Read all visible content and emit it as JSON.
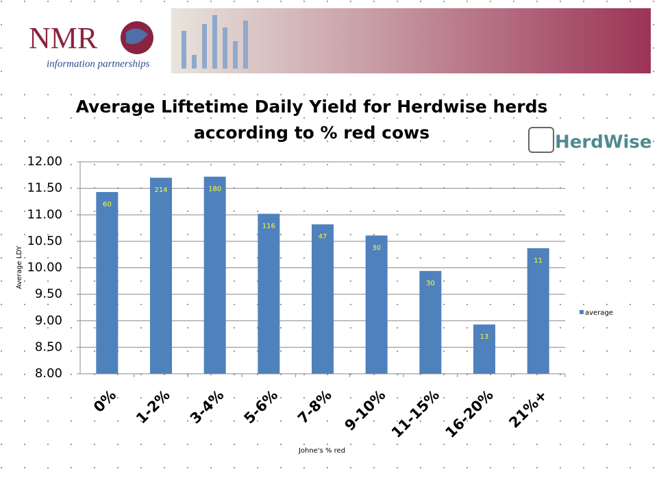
{
  "header": {
    "logo": "NMR",
    "tagline": "information partnerships",
    "brand": "HerdWise"
  },
  "chart_data": {
    "type": "bar",
    "title": [
      "Average Liftetime Daily Yield  for Herdwise herds",
      "according to % red cows"
    ],
    "y_label": "Average LDY",
    "x_label": "Johne's % red",
    "categories": [
      "0%",
      "1-2%",
      "3-4%",
      "5-6%",
      "7-8%",
      "9-10%",
      "11-15%",
      "16-20%",
      "21%+"
    ],
    "series": [
      {
        "name": "average",
        "color": "#4f81bd",
        "values": [
          11.43,
          11.7,
          11.72,
          11.02,
          10.82,
          10.61,
          9.94,
          8.93,
          10.37
        ]
      }
    ],
    "bar_labels": [
      60,
      214,
      180,
      116,
      47,
      30,
      30,
      13,
      11
    ],
    "ylim": [
      8,
      12
    ],
    "yticks": [
      {
        "value": 8,
        "label": "8.00"
      },
      {
        "value": 8.5,
        "label": "8.50"
      },
      {
        "value": 9,
        "label": "9.00"
      },
      {
        "value": 9.5,
        "label": "9.50"
      },
      {
        "value": 10,
        "label": "10.00"
      },
      {
        "value": 10.5,
        "label": "10.50"
      },
      {
        "value": 11,
        "label": "11.00"
      },
      {
        "value": 11.5,
        "label": "11.50"
      },
      {
        "value": 12,
        "label": "12.00"
      }
    ],
    "grid": true,
    "legend": "right"
  }
}
